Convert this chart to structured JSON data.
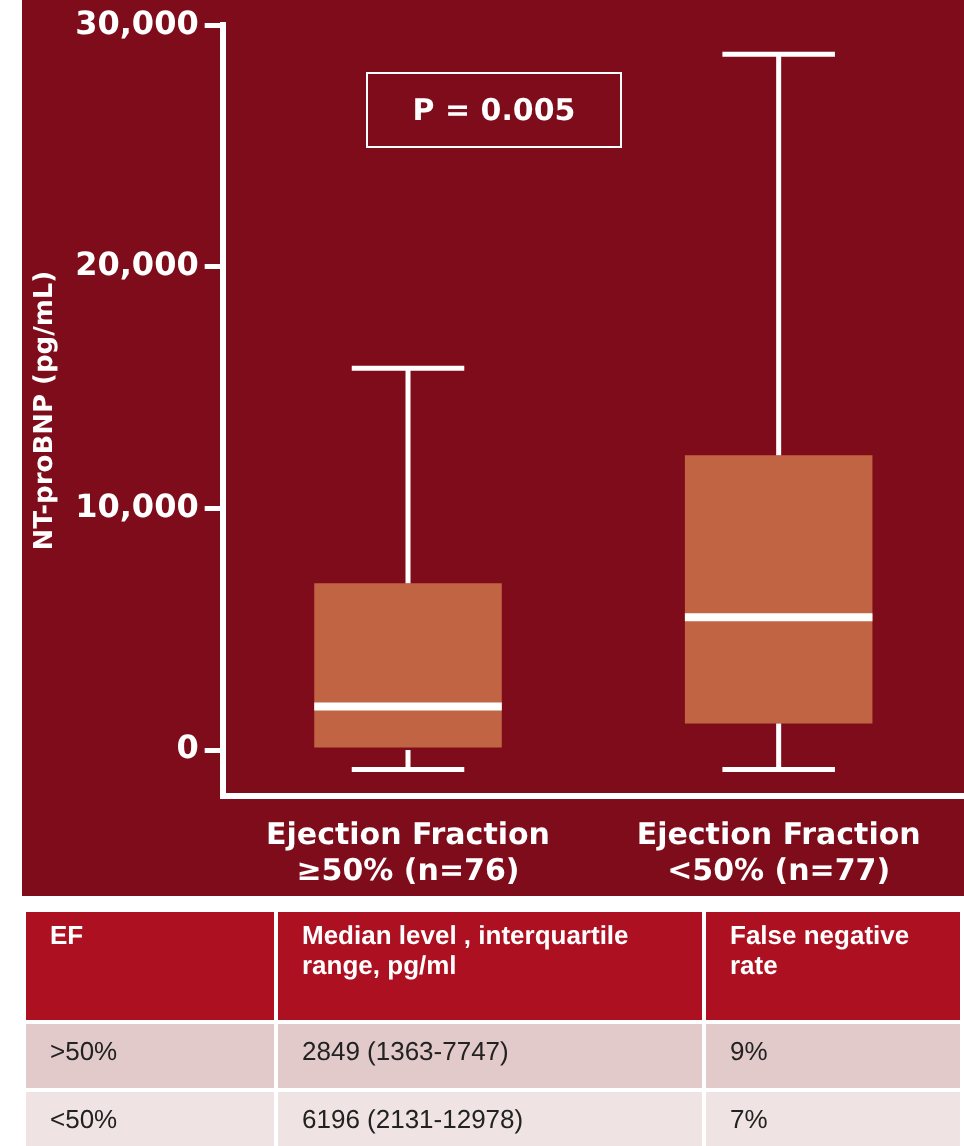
{
  "chart_data": {
    "type": "box",
    "ylabel": "NT-proBNP (pg/mL)",
    "categories": [
      "Ejection Fraction ≥50% (n=76)",
      "Ejection Fraction <50% (n=77)"
    ],
    "boxes": [
      {
        "low": -800,
        "q1": 0,
        "median": 1800,
        "q3": 6900,
        "high": 15800
      },
      {
        "low": -800,
        "q1": 1100,
        "median": 5500,
        "q3": 12200,
        "high": 28800
      }
    ],
    "color": "#c06443",
    "ylim": [
      -1900,
      30000
    ],
    "yticks": [
      0,
      {
        "value": 10000,
        "label": "10,000"
      },
      {
        "value": 20000,
        "label": "20,000"
      },
      {
        "value": 30000,
        "label": "30,000"
      }
    ],
    "grid": false,
    "legend": false,
    "annotations": [
      "P = 0.005",
      "EF",
      "Median level , interquartile range, pg/ml",
      "False negative rate",
      ">50%",
      "2849 (1363-7747)",
      "9%",
      "<50%",
      "6196 (2131-12978)",
      "7%"
    ]
  }
}
